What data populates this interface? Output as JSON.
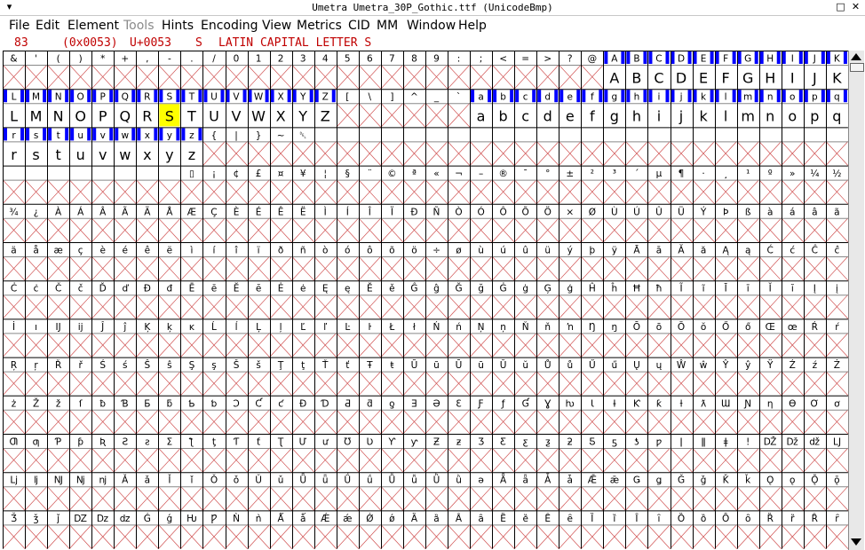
{
  "window": {
    "title": "Umetra  Umetra_30P_Gothic.ttf (UnicodeBmp)",
    "controls": {
      "menu": "▾",
      "maximize": "□",
      "close": "✕"
    }
  },
  "menubar": [
    {
      "label": "File",
      "enabled": true
    },
    {
      "label": "Edit",
      "enabled": true
    },
    {
      "label": "Element",
      "enabled": true
    },
    {
      "label": "Tools",
      "enabled": false
    },
    {
      "label": "Hints",
      "enabled": true
    },
    {
      "label": "Encoding",
      "enabled": true
    },
    {
      "label": "View",
      "enabled": true
    },
    {
      "label": "Metrics",
      "enabled": true
    },
    {
      "label": "CID",
      "enabled": true
    },
    {
      "label": "MM",
      "enabled": true
    },
    {
      "label": "Window",
      "enabled": true
    },
    {
      "label": "Help",
      "enabled": true
    }
  ],
  "info": {
    "index": "83",
    "hex": "(0x0053)",
    "unicode": "U+0053",
    "char": "S",
    "name": "LATIN CAPITAL LETTER S"
  },
  "colors": {
    "label_bg_accent": "#0000ff",
    "selected": "#ffff00",
    "empty_cross": "#d05050"
  },
  "grid": {
    "rows": [
      {
        "labels": [
          "&",
          "'",
          "(",
          ")",
          "*",
          "+",
          ",",
          "-",
          ".",
          "/",
          "0",
          "1",
          "2",
          "3",
          "4",
          "5",
          "6",
          "7",
          "8",
          "9",
          ":",
          ";",
          "<",
          "=",
          ">",
          "?",
          "@",
          "A",
          "B",
          "C",
          "D",
          "E",
          "F",
          "G",
          "H",
          "I",
          "J",
          "K"
        ],
        "glyphs": [
          "",
          "",
          "",
          "",
          "",
          "",
          "",
          "",
          "",
          "",
          "",
          "",
          "",
          "",
          "",
          "",
          "",
          "",
          "",
          "",
          "",
          "",
          "",
          "",
          "",
          "",
          "",
          "A",
          "B",
          "C",
          "D",
          "E",
          "F",
          "G",
          "H",
          "I",
          "J",
          "K"
        ]
      },
      {
        "labels": [
          "L",
          "M",
          "N",
          "O",
          "P",
          "Q",
          "R",
          "S",
          "T",
          "U",
          "V",
          "W",
          "X",
          "Y",
          "Z",
          "[",
          "\\",
          "]",
          "^",
          "_",
          "`",
          "a",
          "b",
          "c",
          "d",
          "e",
          "f",
          "g",
          "h",
          "i",
          "j",
          "k",
          "l",
          "m",
          "n",
          "o",
          "p",
          "q"
        ],
        "glyphs": [
          "L",
          "M",
          "N",
          "O",
          "P",
          "Q",
          "R",
          "S",
          "T",
          "U",
          "V",
          "W",
          "X",
          "Y",
          "Z",
          "",
          "",
          "",
          "",
          "",
          "",
          "a",
          "b",
          "c",
          "d",
          "e",
          "f",
          "g",
          "h",
          "i",
          "j",
          "k",
          "l",
          "m",
          "n",
          "o",
          "p",
          "q"
        ]
      },
      {
        "labels": [
          "r",
          "s",
          "t",
          "u",
          "v",
          "w",
          "x",
          "y",
          "z",
          "{",
          "|",
          "}",
          "~",
          "␡",
          "",
          "",
          "",
          "",
          "",
          "",
          "",
          "",
          "",
          "",
          "",
          "",
          "",
          "",
          "",
          "",
          "",
          "",
          "",
          "",
          "",
          "",
          "",
          ""
        ],
        "glyphs": [
          "r",
          "s",
          "t",
          "u",
          "v",
          "w",
          "x",
          "y",
          "z",
          "",
          "",
          "",
          "",
          "",
          "",
          "",
          "",
          "",
          "",
          "",
          "",
          "",
          "",
          "",
          "",
          "",
          "",
          "",
          "",
          "",
          "",
          "",
          "",
          "",
          "",
          "",
          "",
          ""
        ]
      },
      {
        "labels": [
          "",
          "",
          "",
          "",
          "",
          "",
          "",
          "",
          "▯",
          "¡",
          "¢",
          "£",
          "¤",
          "¥",
          "¦",
          "§",
          "¨",
          "©",
          "ª",
          "«",
          "¬",
          "–",
          "®",
          "¯",
          "°",
          "±",
          "²",
          "³",
          "´",
          "µ",
          "¶",
          "·",
          "¸",
          "¹",
          "º",
          "»",
          "¼",
          "½"
        ],
        "glyphs": [
          "",
          "",
          "",
          "",
          "",
          "",
          "",
          "",
          "",
          "",
          "",
          "",
          "",
          "",
          "",
          "",
          "",
          "",
          "",
          "",
          "",
          "",
          "",
          "",
          "",
          "",
          "",
          "",
          "",
          "",
          "",
          "",
          "",
          "",
          "",
          "",
          "",
          ""
        ]
      },
      {
        "labels": [
          "¾",
          "¿",
          "À",
          "Á",
          "Â",
          "Ã",
          "Ä",
          "Å",
          "Æ",
          "Ç",
          "È",
          "É",
          "Ê",
          "Ë",
          "Ì",
          "Í",
          "Î",
          "Ï",
          "Ð",
          "Ñ",
          "Ò",
          "Ó",
          "Ô",
          "Õ",
          "Ö",
          "×",
          "Ø",
          "Ù",
          "Ú",
          "Û",
          "Ü",
          "Ý",
          "Þ",
          "ß",
          "à",
          "á",
          "â",
          "ã"
        ],
        "glyphs": [
          "",
          "",
          "",
          "",
          "",
          "",
          "",
          "",
          "",
          "",
          "",
          "",
          "",
          "",
          "",
          "",
          "",
          "",
          "",
          "",
          "",
          "",
          "",
          "",
          "",
          "",
          "",
          "",
          "",
          "",
          "",
          "",
          "",
          "",
          "",
          "",
          "",
          ""
        ]
      },
      {
        "labels": [
          "ä",
          "å",
          "æ",
          "ç",
          "è",
          "é",
          "ê",
          "ë",
          "ì",
          "í",
          "î",
          "ï",
          "ð",
          "ñ",
          "ò",
          "ó",
          "ô",
          "õ",
          "ö",
          "÷",
          "ø",
          "ù",
          "ú",
          "û",
          "ü",
          "ý",
          "þ",
          "ÿ",
          "Ā",
          "ā",
          "Ă",
          "ă",
          "Ą",
          "ą",
          "Ć",
          "ć",
          "Ĉ",
          "ĉ"
        ],
        "glyphs": [
          "",
          "",
          "",
          "",
          "",
          "",
          "",
          "",
          "",
          "",
          "",
          "",
          "",
          "",
          "",
          "",
          "",
          "",
          "",
          "",
          "",
          "",
          "",
          "",
          "",
          "",
          "",
          "",
          "",
          "",
          "",
          "",
          "",
          "",
          "",
          "",
          "",
          ""
        ]
      },
      {
        "labels": [
          "Ċ",
          "ċ",
          "Č",
          "č",
          "Ď",
          "ď",
          "Đ",
          "đ",
          "Ē",
          "ē",
          "Ĕ",
          "ĕ",
          "Ė",
          "ė",
          "Ę",
          "ę",
          "Ě",
          "ě",
          "Ĝ",
          "ĝ",
          "Ğ",
          "ğ",
          "Ġ",
          "ġ",
          "Ģ",
          "ģ",
          "Ĥ",
          "ĥ",
          "Ħ",
          "ħ",
          "Ĩ",
          "ĩ",
          "Ī",
          "ī",
          "Ĭ",
          "ĭ",
          "Į",
          "į"
        ],
        "glyphs": [
          "",
          "",
          "",
          "",
          "",
          "",
          "",
          "",
          "",
          "",
          "",
          "",
          "",
          "",
          "",
          "",
          "",
          "",
          "",
          "",
          "",
          "",
          "",
          "",
          "",
          "",
          "",
          "",
          "",
          "",
          "",
          "",
          "",
          "",
          "",
          "",
          "",
          ""
        ]
      },
      {
        "labels": [
          "İ",
          "ı",
          "Ĳ",
          "ĳ",
          "Ĵ",
          "ĵ",
          "Ķ",
          "ķ",
          "ĸ",
          "Ĺ",
          "ĺ",
          "Ļ",
          "ļ",
          "Ľ",
          "ľ",
          "Ŀ",
          "ŀ",
          "Ł",
          "ł",
          "Ń",
          "ń",
          "Ņ",
          "ņ",
          "Ň",
          "ň",
          "ŉ",
          "Ŋ",
          "ŋ",
          "Ō",
          "ō",
          "Ŏ",
          "ŏ",
          "Ő",
          "ő",
          "Œ",
          "œ",
          "Ŕ",
          "ŕ"
        ],
        "glyphs": [
          "",
          "",
          "",
          "",
          "",
          "",
          "",
          "",
          "",
          "",
          "",
          "",
          "",
          "",
          "",
          "",
          "",
          "",
          "",
          "",
          "",
          "",
          "",
          "",
          "",
          "",
          "",
          "",
          "",
          "",
          "",
          "",
          "",
          "",
          "",
          "",
          "",
          ""
        ]
      },
      {
        "labels": [
          "Ŗ",
          "ŗ",
          "Ř",
          "ř",
          "Ś",
          "ś",
          "Ŝ",
          "ŝ",
          "Ş",
          "ş",
          "Š",
          "š",
          "Ţ",
          "ţ",
          "Ť",
          "ť",
          "Ŧ",
          "ŧ",
          "Ũ",
          "ũ",
          "Ū",
          "ū",
          "Ŭ",
          "ŭ",
          "Ů",
          "ů",
          "Ű",
          "ű",
          "Ų",
          "ų",
          "Ŵ",
          "ŵ",
          "Ŷ",
          "ŷ",
          "Ÿ",
          "Ź",
          "ź",
          "Ż"
        ],
        "glyphs": [
          "",
          "",
          "",
          "",
          "",
          "",
          "",
          "",
          "",
          "",
          "",
          "",
          "",
          "",
          "",
          "",
          "",
          "",
          "",
          "",
          "",
          "",
          "",
          "",
          "",
          "",
          "",
          "",
          "",
          "",
          "",
          "",
          "",
          "",
          "",
          "",
          "",
          ""
        ]
      },
      {
        "labels": [
          "ż",
          "Ž",
          "ž",
          "ſ",
          "ƀ",
          "Ɓ",
          "Ƃ",
          "ƃ",
          "Ƅ",
          "ƅ",
          "Ɔ",
          "Ƈ",
          "ƈ",
          "Ɖ",
          "Ɗ",
          "Ƌ",
          "ƌ",
          "ƍ",
          "Ǝ",
          "Ə",
          "Ɛ",
          "Ƒ",
          "ƒ",
          "Ɠ",
          "Ɣ",
          "ƕ",
          "Ɩ",
          "Ɨ",
          "Ƙ",
          "ƙ",
          "ƚ",
          "ƛ",
          "Ɯ",
          "Ɲ",
          "ƞ",
          "Ɵ",
          "Ơ",
          "ơ"
        ],
        "glyphs": [
          "",
          "",
          "",
          "",
          "",
          "",
          "",
          "",
          "",
          "",
          "",
          "",
          "",
          "",
          "",
          "",
          "",
          "",
          "",
          "",
          "",
          "",
          "",
          "",
          "",
          "",
          "",
          "",
          "",
          "",
          "",
          "",
          "",
          "",
          "",
          "",
          "",
          ""
        ]
      },
      {
        "labels": [
          "Ƣ",
          "ƣ",
          "Ƥ",
          "ƥ",
          "Ʀ",
          "Ƨ",
          "ƨ",
          "Ʃ",
          "ƪ",
          "ƫ",
          "Ƭ",
          "ƭ",
          "Ʈ",
          "Ư",
          "ư",
          "Ʊ",
          "Ʋ",
          "Ƴ",
          "ƴ",
          "Ƶ",
          "ƶ",
          "Ʒ",
          "Ƹ",
          "ƹ",
          "ƺ",
          "ƻ",
          "Ƽ",
          "ƽ",
          "ƾ",
          "ƿ",
          "ǀ",
          "ǁ",
          "ǂ",
          "ǃ",
          "Ǆ",
          "ǅ",
          "ǆ",
          "Ǉ"
        ],
        "glyphs": [
          "",
          "",
          "",
          "",
          "",
          "",
          "",
          "",
          "",
          "",
          "",
          "",
          "",
          "",
          "",
          "",
          "",
          "",
          "",
          "",
          "",
          "",
          "",
          "",
          "",
          "",
          "",
          "",
          "",
          "",
          "",
          "",
          "",
          "",
          "",
          "",
          "",
          ""
        ]
      },
      {
        "labels": [
          "ǈ",
          "ǉ",
          "Ǌ",
          "ǋ",
          "ǌ",
          "Ǎ",
          "ǎ",
          "Ǐ",
          "ǐ",
          "Ǒ",
          "ǒ",
          "Ǔ",
          "ǔ",
          "Ǖ",
          "ǖ",
          "Ǘ",
          "ǘ",
          "Ǚ",
          "ǚ",
          "Ǜ",
          "ǜ",
          "ǝ",
          "Ǟ",
          "ǟ",
          "Ǡ",
          "ǡ",
          "Ǣ",
          "ǣ",
          "Ǥ",
          "ǥ",
          "Ǧ",
          "ǧ",
          "Ǩ",
          "ǩ",
          "Ǫ",
          "ǫ",
          "Ǭ",
          "ǭ"
        ],
        "glyphs": [
          "",
          "",
          "",
          "",
          "",
          "",
          "",
          "",
          "",
          "",
          "",
          "",
          "",
          "",
          "",
          "",
          "",
          "",
          "",
          "",
          "",
          "",
          "",
          "",
          "",
          "",
          "",
          "",
          "",
          "",
          "",
          "",
          "",
          "",
          "",
          "",
          "",
          ""
        ]
      },
      {
        "labels": [
          "Ǯ",
          "ǯ",
          "ǰ",
          "Ǳ",
          "ǲ",
          "ǳ",
          "Ǵ",
          "ǵ",
          "Ƕ",
          "Ƿ",
          "Ǹ",
          "ǹ",
          "Ǻ",
          "ǻ",
          "Ǽ",
          "ǽ",
          "Ǿ",
          "ǿ",
          "Ȁ",
          "ȁ",
          "Ȃ",
          "ȃ",
          "Ȅ",
          "ȅ",
          "Ȇ",
          "ȇ",
          "Ȉ",
          "ȉ",
          "Ȋ",
          "ȋ",
          "Ȍ",
          "ȍ",
          "Ȏ",
          "ȏ",
          "Ȑ",
          "ȑ",
          "Ȓ",
          "ȓ"
        ],
        "glyphs": [
          "",
          "",
          "",
          "",
          "",
          "",
          "",
          "",
          "",
          "",
          "",
          "",
          "",
          "",
          "",
          "",
          "",
          "",
          "",
          "",
          "",
          "",
          "",
          "",
          "",
          "",
          "",
          "",
          "",
          "",
          "",
          "",
          "",
          "",
          "",
          "",
          "",
          ""
        ]
      }
    ],
    "highlighted": [
      "A",
      "B",
      "C",
      "D",
      "E",
      "F",
      "G",
      "H",
      "I",
      "J",
      "K",
      "L",
      "M",
      "N",
      "O",
      "P",
      "Q",
      "R",
      "S",
      "T",
      "U",
      "V",
      "W",
      "X",
      "Y",
      "Z",
      "a",
      "b",
      "c",
      "d",
      "e",
      "f",
      "g",
      "h",
      "i",
      "j",
      "k",
      "l",
      "m",
      "n",
      "o",
      "p",
      "q",
      "r",
      "s",
      "t",
      "u",
      "v",
      "w",
      "x",
      "y",
      "z"
    ],
    "selected": {
      "row": 1,
      "col": 7
    }
  }
}
